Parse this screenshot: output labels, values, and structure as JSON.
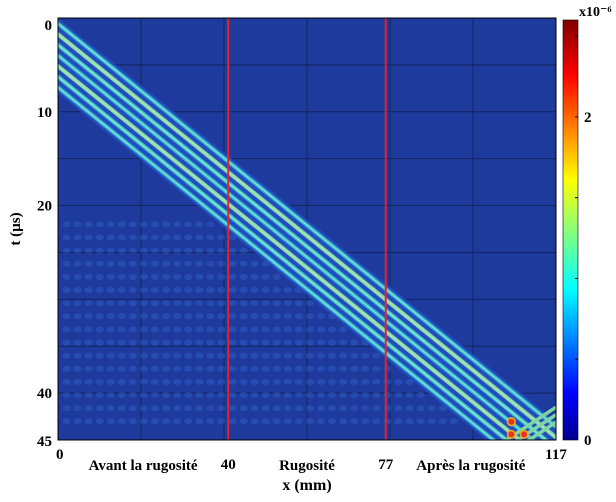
{
  "chart_data": {
    "type": "heatmap",
    "xlabel": "x (mm)",
    "ylabel": "t (µs)",
    "xlim": [
      0,
      117
    ],
    "ylim": [
      0,
      45
    ],
    "y_direction": "down",
    "x_ticks": [
      {
        "value": 0,
        "label": "0"
      },
      {
        "value": 40,
        "label": "40"
      },
      {
        "value": 77,
        "label": "77"
      },
      {
        "value": 117,
        "label": "117"
      }
    ],
    "y_ticks": [
      {
        "value": 0,
        "label": "0"
      },
      {
        "value": 10,
        "label": "10"
      },
      {
        "value": 20,
        "label": "20"
      },
      {
        "value": 40,
        "label": "40"
      },
      {
        "value": 45,
        "label": "45"
      }
    ],
    "grid": true,
    "vertical_lines": [
      {
        "x": 40,
        "color": "#e8202a"
      },
      {
        "x": 77,
        "color": "#e8202a"
      }
    ],
    "region_labels": [
      {
        "text": "Avant la rugosité",
        "x_center": 20
      },
      {
        "text": "Rugosité",
        "x_center": 58.5
      },
      {
        "text": "Après la rugosité",
        "x_center": 97
      }
    ],
    "colorbar": {
      "multiplier": "x10⁻⁶",
      "min": 0,
      "max": 2.6,
      "ticks": [
        {
          "value": 0,
          "label": "0"
        },
        {
          "value": 2,
          "label": "2"
        }
      ],
      "colormap": "jet"
    },
    "wave_packet": {
      "description_free": true,
      "start": {
        "x": 0,
        "t": 0
      },
      "end": {
        "x": 117,
        "t": 43
      },
      "time_width": 8,
      "fringes": 7
    },
    "background_color": "#1e3a9c",
    "fringe_colors": [
      "#2db6cf",
      "#7fd6a3",
      "#3cc6c8"
    ],
    "hotspot_colors": [
      "#e43423",
      "#f2a81d",
      "#f6e22f"
    ]
  }
}
